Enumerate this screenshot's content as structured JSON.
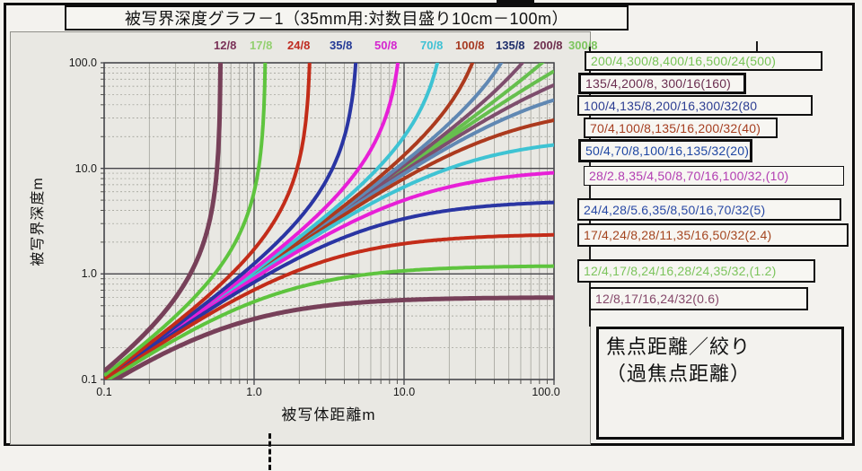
{
  "title": "被写界深度グラフ－1（35mm用:対数目盛り10cm－100m）",
  "chart_data": {
    "type": "line",
    "title": "被写界深度グラフ－1（35mm用:対数目盛り10cm－100m）",
    "xlabel": "被写体距離m",
    "ylabel": "被写界深度m",
    "x_scale": "log",
    "y_scale": "log",
    "xlim": [
      0.1,
      100
    ],
    "ylim": [
      0.1,
      100
    ],
    "x_ticks": [
      "0.1",
      "1.0",
      "10.0",
      "100.0"
    ],
    "y_ticks": [
      "0.1",
      "1.0",
      "10.0",
      "100.0"
    ],
    "grid": "log major and minor gridlines, both axes",
    "legend_position": "top and right",
    "curve_model": "Each series has a hyperfocal distance H (m). Two branches per series: far-limit curve y = H*x/(H-x) rising to a vertical asymptote at x = H, and near-limit curve y = H*x/(H+x) flattening toward y = H.",
    "series": [
      {
        "label": "12/8",
        "hyperfocal_m": 0.6,
        "color": "#774059",
        "label_color": "#7a3158"
      },
      {
        "label": "17/8",
        "hyperfocal_m": 1.2,
        "color": "#5ec43e",
        "label_color": "#93d070"
      },
      {
        "label": "24/8",
        "hyperfocal_m": 2.4,
        "color": "#c32c19",
        "label_color": "#bf2b20"
      },
      {
        "label": "35/8",
        "hyperfocal_m": 5,
        "color": "#2a35a3",
        "label_color": "#253a96"
      },
      {
        "label": "50/8",
        "hyperfocal_m": 10,
        "color": "#e71fd7",
        "label_color": "#d425cf"
      },
      {
        "label": "70/8",
        "hyperfocal_m": 20,
        "color": "#3ec3d3",
        "label_color": "#3fc1d4"
      },
      {
        "label": "100/8",
        "hyperfocal_m": 40,
        "color": "#ac3a1e",
        "label_color": "#a63a22"
      },
      {
        "label": "135/8",
        "hyperfocal_m": 80,
        "color": "#6088b3",
        "label_color": "#1f2f6b"
      },
      {
        "label": "200/8",
        "hyperfocal_m": 160,
        "color": "#7e4e6d",
        "label_color": "#6e2f4e"
      },
      {
        "label": "300/8",
        "hyperfocal_m": 500,
        "color": "#66bf4e",
        "label_color": "#7cc55e"
      }
    ]
  },
  "legend_boxes": [
    {
      "text": "200/4,300/8,400/16,500/24(500)",
      "hyperfocal_m": 500,
      "color": "#77c356"
    },
    {
      "text": "135/4,200/8, 300/16(160)",
      "hyperfocal_m": 160,
      "color": "#6b2e50"
    },
    {
      "text": "100/4,135/8,200/16,300/32(80",
      "hyperfocal_m": 80,
      "color": "#2c3d92"
    },
    {
      "text": "70/4,100/8,135/16,200/32(40)",
      "hyperfocal_m": 40,
      "color": "#a63f21"
    },
    {
      "text": "50/4,70/8,100/16,135/32(20)",
      "hyperfocal_m": 20,
      "color": "#1f47a3"
    },
    {
      "text": "28/2.8,35/4,50/8,70/16,100/32,(10)",
      "hyperfocal_m": 10,
      "color": "#b23db2"
    },
    {
      "text": "24/4,28/5.6,35/8,50/16,70/32(5)",
      "hyperfocal_m": 5,
      "color": "#2a4aa5"
    },
    {
      "text": "17/4,24/8,28/11,35/16,50/32(2.4)",
      "hyperfocal_m": 2.4,
      "color": "#a4451f"
    },
    {
      "text": "12/4,17/8,24/16,28/24,35/32,(1.2)",
      "hyperfocal_m": 1.2,
      "color": "#7cc45c"
    },
    {
      "text": "12/8,17/16,24/32(0.6)",
      "hyperfocal_m": 0.6,
      "color": "#85486a"
    }
  ],
  "note_box": {
    "line1": "焦点距離／絞り",
    "line2": "（過焦点距離）"
  }
}
